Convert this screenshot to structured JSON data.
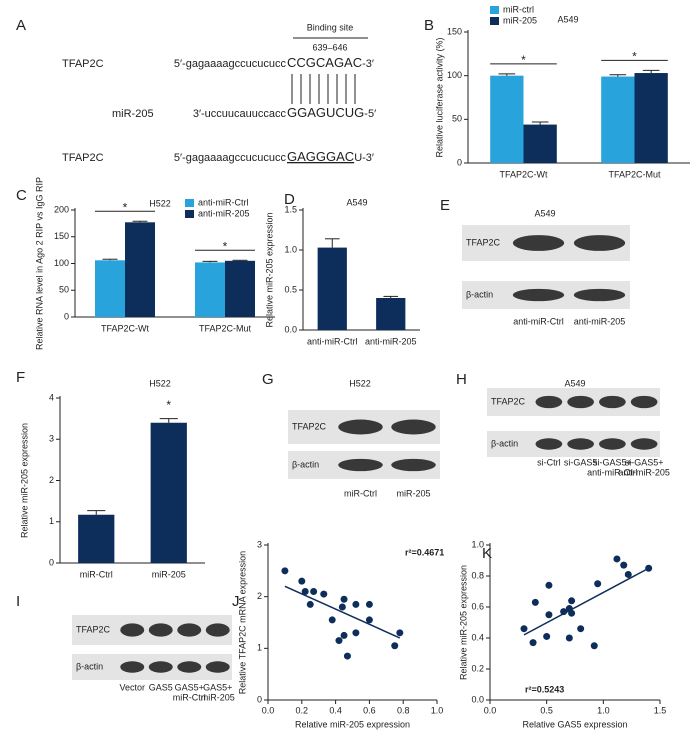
{
  "panel_labels": [
    "A",
    "B",
    "C",
    "D",
    "E",
    "F",
    "G",
    "H",
    "I",
    "J",
    "K"
  ],
  "sequence": {
    "binding_site_label": "Binding site",
    "binding_site_range": "639–646",
    "rows": [
      {
        "name": "TFAP2C",
        "prefix": "5′-gagaaaagccucucucc",
        "site": "CCGCAGAC",
        "suffix": "-3′"
      },
      {
        "name": "miR-205",
        "prefix": "3′-uccuucauuccacc",
        "site": "GGAGUCUG",
        "suffix": "-5′"
      },
      {
        "name": "TFAP2C",
        "prefix": "5′-gagaaaagccucucucc",
        "site": "GAGGGAC",
        "suffix": "U-3′"
      }
    ]
  },
  "blots": [
    {
      "title": "A549",
      "rows": [
        "TFAP2C",
        "β-actin"
      ],
      "lanes": [
        [
          "anti-miR-Ctrl"
        ],
        [
          "anti-miR-205"
        ]
      ]
    },
    {
      "title": "H522",
      "rows": [
        "TFAP2C",
        "β-actin"
      ],
      "lanes": [
        [
          "miR-Ctrl"
        ],
        [
          "miR-205"
        ]
      ]
    },
    {
      "title": "A549",
      "rows": [
        "TFAP2C",
        "β-actin"
      ],
      "lanes": [
        [
          "si-Ctrl"
        ],
        [
          "si-GAS5"
        ],
        [
          "si-GAS5+",
          "anti-miR-Ctrl"
        ],
        [
          "si-GAS5+",
          "anti-miR-205"
        ]
      ]
    },
    {
      "rows": [
        "TFAP2C",
        "β-actin"
      ],
      "lanes": [
        [
          "Vector"
        ],
        [
          "GAS5"
        ],
        [
          "GAS5+",
          "miR-Ctrl"
        ],
        [
          "GAS5+",
          "miR-205"
        ]
      ]
    }
  ],
  "chart_data": [
    {
      "type": "bar",
      "title": "A549",
      "ylabel": "Relative luciferase activity (%)",
      "categories": [
        "TFAP2C-Wt",
        "TFAP2C-Mut"
      ],
      "series": [
        {
          "name": "miR-ctrl",
          "color": "#29a3dc",
          "values": [
            100,
            99
          ],
          "errors": [
            2,
            2
          ]
        },
        {
          "name": "miR-205",
          "color": "#0d2d5a",
          "values": [
            44,
            103
          ],
          "errors": [
            3,
            3
          ]
        }
      ],
      "ylim": [
        0,
        150
      ],
      "yticks": [
        0,
        50,
        100,
        150
      ],
      "annotations": [
        "*",
        "*"
      ]
    },
    {
      "type": "bar",
      "title": "H522",
      "ylabel": "Relative RNA level in Ago 2 RIP vs IgG RIP",
      "categories": [
        "TFAP2C-Wt",
        "TFAP2C-Mut"
      ],
      "series": [
        {
          "name": "anti-miR-Ctrl",
          "color": "#29a3dc",
          "values": [
            106,
            102
          ],
          "errors": [
            2,
            2
          ]
        },
        {
          "name": "anti-miR-205",
          "color": "#0d2d5a",
          "values": [
            177,
            105
          ],
          "errors": [
            2,
            1
          ]
        }
      ],
      "ylim": [
        0,
        200
      ],
      "yticks": [
        0,
        50,
        100,
        150,
        200
      ],
      "annotations": [
        "*",
        "*"
      ]
    },
    {
      "type": "bar",
      "title": "A549",
      "ylabel": "Relative miR-205 expression",
      "categories": [
        "anti-miR-Ctrl",
        "anti-miR-205"
      ],
      "color": "#0d2d5a",
      "values": [
        1.03,
        0.4
      ],
      "errors": [
        0.11,
        0.02
      ],
      "ylim": [
        0,
        1.5
      ],
      "yticks": [
        {
          "value": 0,
          "label": "0.0"
        },
        {
          "value": 0.5,
          "label": "0.5"
        },
        {
          "value": 1,
          "label": "1.0"
        },
        {
          "value": 1.5,
          "label": "1.5"
        }
      ]
    },
    {
      "type": "bar",
      "title": "H522",
      "ylabel": "Relative miR-205 expression",
      "categories": [
        "miR-Ctrl",
        "miR-205"
      ],
      "color": "#0d2d5a",
      "values": [
        1.17,
        3.4
      ],
      "errors": [
        0.1,
        0.1
      ],
      "ylim": [
        0,
        4
      ],
      "yticks": [
        0,
        1,
        2,
        3,
        4
      ],
      "annotations": [
        "*"
      ]
    },
    {
      "type": "scatter",
      "xlabel": "Relative miR-205 expression",
      "ylabel": "Relative TFAP2C mRNA expression",
      "color": "#0d2d5a",
      "x": [
        0.1,
        0.2,
        0.22,
        0.27,
        0.25,
        0.33,
        0.38,
        0.42,
        0.44,
        0.45,
        0.45,
        0.47,
        0.52,
        0.52,
        0.6,
        0.6,
        0.75,
        0.78
      ],
      "y": [
        2.5,
        2.3,
        2.1,
        2.1,
        1.85,
        2.05,
        1.55,
        1.15,
        1.8,
        1.95,
        1.25,
        0.85,
        1.85,
        1.3,
        1.85,
        1.55,
        1.05,
        1.3
      ],
      "trend": {
        "x": [
          0.1,
          0.78
        ],
        "y": [
          2.2,
          1.2
        ]
      },
      "xlim": [
        0,
        1
      ],
      "xticks": [
        {
          "value": 0,
          "label": "0.0"
        },
        {
          "value": 0.2,
          "label": "0.2"
        },
        {
          "value": 0.4,
          "label": "0.4"
        },
        {
          "value": 0.6,
          "label": "0.6"
        },
        {
          "value": 0.8,
          "label": "0.8"
        },
        {
          "value": 1,
          "label": "1.0"
        }
      ],
      "ylim": [
        0,
        3
      ],
      "yticks": [
        0,
        1,
        2,
        3
      ],
      "annotations": [
        "r²=0.4671"
      ]
    },
    {
      "type": "scatter",
      "xlabel": "Relative GAS5 expression",
      "ylabel": "Relative miR-205 expression",
      "color": "#0d2d5a",
      "x": [
        0.3,
        0.38,
        0.4,
        0.5,
        0.52,
        0.52,
        0.65,
        0.7,
        0.7,
        0.72,
        0.72,
        0.8,
        0.92,
        0.95,
        1.12,
        1.18,
        1.22,
        1.4
      ],
      "y": [
        0.46,
        0.37,
        0.63,
        0.41,
        0.55,
        0.74,
        0.57,
        0.59,
        0.4,
        0.64,
        0.56,
        0.46,
        0.35,
        0.75,
        0.91,
        0.87,
        0.81,
        0.85
      ],
      "trend": {
        "x": [
          0.3,
          1.4
        ],
        "y": [
          0.42,
          0.85
        ]
      },
      "xlim": [
        0,
        1.5
      ],
      "xticks": [
        {
          "value": 0,
          "label": "0.0"
        },
        {
          "value": 0.5,
          "label": "0.5"
        },
        {
          "value": 1,
          "label": "1.0"
        },
        {
          "value": 1.5,
          "label": "1.5"
        }
      ],
      "ylim": [
        0,
        1
      ],
      "yticks": [
        {
          "value": 0,
          "label": "0.0"
        },
        {
          "value": 0.2,
          "label": "0.2"
        },
        {
          "value": 0.4,
          "label": "0.4"
        },
        {
          "value": 0.6,
          "label": "0.6"
        },
        {
          "value": 0.8,
          "label": "0.8"
        },
        {
          "value": 1,
          "label": "1.0"
        }
      ],
      "annotations": [
        "r²=0.5243"
      ]
    }
  ]
}
